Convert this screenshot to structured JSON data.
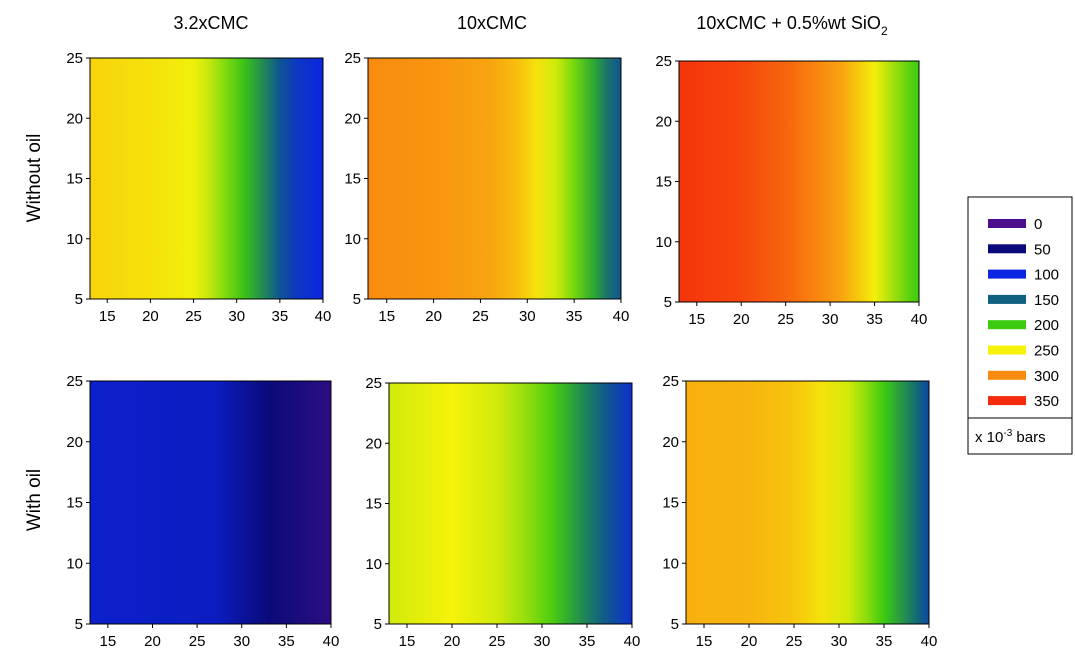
{
  "chart_data": {
    "type": "heatmap",
    "column_titles": [
      "3.2xCMC",
      "10xCMC",
      "10xCMC + 0.5%wt SiO"
    ],
    "column_title_subscript": "2",
    "row_labels": [
      "Without oil",
      "With oil"
    ],
    "x_ticks": [
      "15",
      "20",
      "25",
      "30",
      "35",
      "40"
    ],
    "y_ticks": [
      "5",
      "10",
      "15",
      "20",
      "25"
    ],
    "xlim": [
      13,
      40
    ],
    "ylim": [
      5,
      25
    ],
    "legend": {
      "position": "right",
      "levels": [
        "0",
        "50",
        "100",
        "150",
        "200",
        "250",
        "300",
        "350"
      ],
      "colors": [
        "#4B0F8C",
        "#0A0A7A",
        "#0C25E0",
        "#10607F",
        "#3CCB10",
        "#F6F20A",
        "#F98B10",
        "#F52A0A"
      ],
      "unit_base": "x 10",
      "unit_exp": "-3",
      "unit_suffix": " bars"
    },
    "panels": [
      {
        "row": "Without oil",
        "column": "3.2xCMC",
        "profile_x": [
          13,
          20,
          25,
          27,
          29,
          31,
          33,
          35,
          37,
          40
        ],
        "profile_value": [
          265,
          258,
          248,
          235,
          215,
          195,
          170,
          140,
          115,
          100
        ]
      },
      {
        "row": "Without oil",
        "column": "10xCMC",
        "profile_x": [
          13,
          20,
          26,
          29,
          31,
          33,
          35,
          37,
          38.5,
          40
        ],
        "profile_value": [
          300,
          295,
          288,
          275,
          258,
          240,
          215,
          185,
          160,
          140
        ]
      },
      {
        "row": "Without oil",
        "column": "10xCMC + 0.5%wt SiO2",
        "profile_x": [
          13,
          20,
          25,
          28,
          31,
          33,
          35,
          37,
          39,
          40
        ],
        "profile_value": [
          345,
          335,
          320,
          305,
          290,
          272,
          252,
          228,
          208,
          200
        ]
      },
      {
        "row": "With oil",
        "column": "3.2xCMC",
        "profile_x": [
          13,
          27,
          33,
          37,
          40
        ],
        "profile_value": [
          90,
          85,
          50,
          35,
          25
        ]
      },
      {
        "row": "With oil",
        "column": "10xCMC",
        "profile_x": [
          13,
          20,
          25,
          28,
          31,
          33,
          35,
          37,
          39,
          40
        ],
        "profile_value": [
          240,
          250,
          240,
          225,
          205,
          185,
          165,
          145,
          120,
          110
        ]
      },
      {
        "row": "With oil",
        "column": "10xCMC + 0.5%wt SiO2",
        "profile_x": [
          13,
          20,
          25,
          28,
          31,
          33,
          35,
          37,
          39,
          40
        ],
        "profile_value": [
          282,
          280,
          272,
          258,
          240,
          222,
          200,
          175,
          150,
          130
        ]
      }
    ]
  }
}
